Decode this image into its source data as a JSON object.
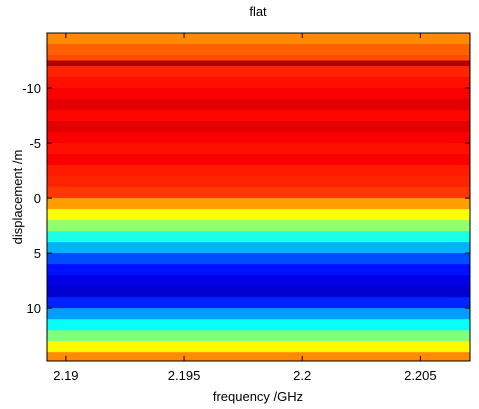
{
  "chart_data": {
    "type": "heatmap",
    "title": "flat",
    "x_label": "frequency /GHz",
    "y_label": "displacement /m",
    "colormap": "jet",
    "y_reversed": true,
    "xlim": [
      2.1892,
      2.2071
    ],
    "xticks": [
      2.19,
      2.195,
      2.2,
      2.205
    ],
    "ylim": [
      -15,
      14.8
    ],
    "yticks": [
      -10,
      -5,
      0,
      5,
      10
    ],
    "y_edges": [
      -15,
      -14,
      -13,
      -12.5,
      -12,
      -11,
      -10,
      -9,
      -8,
      -7,
      -6,
      -5,
      -4,
      -3,
      -2,
      -1,
      0,
      1,
      2,
      3,
      4,
      5,
      6,
      7,
      8,
      9,
      10,
      11,
      12,
      13,
      14,
      15
    ],
    "values": [
      0.74,
      0.78,
      0.8,
      0.95,
      0.84,
      0.86,
      0.88,
      0.9,
      0.87,
      0.9,
      0.88,
      0.86,
      0.88,
      0.85,
      0.84,
      0.82,
      0.72,
      0.62,
      0.52,
      0.4,
      0.3,
      0.2,
      0.14,
      0.1,
      0.08,
      0.16,
      0.28,
      0.38,
      0.5,
      0.63,
      0.74
    ]
  }
}
